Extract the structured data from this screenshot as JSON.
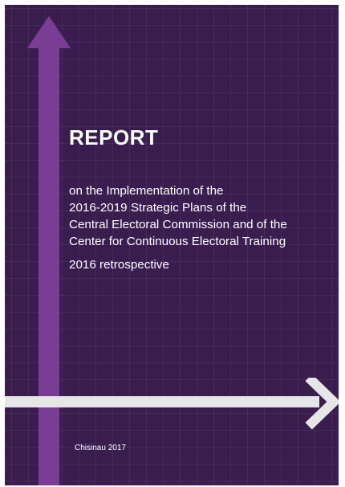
{
  "cover": {
    "title": "REPORT",
    "subtitle_lines": [
      "on the Implementation of the",
      "2016-2019 Strategic Plans of the",
      "Central Electoral Commission and of the",
      "Center for Continuous Electoral Training"
    ],
    "retrospective": "2016 retrospective",
    "place_date": "Chisinau 2017"
  },
  "colors": {
    "background": "#3a1d4f",
    "vertical_arrow": "#7a3d95",
    "horizontal_arrow": "#e6e6e6",
    "text": "#ffffff"
  }
}
